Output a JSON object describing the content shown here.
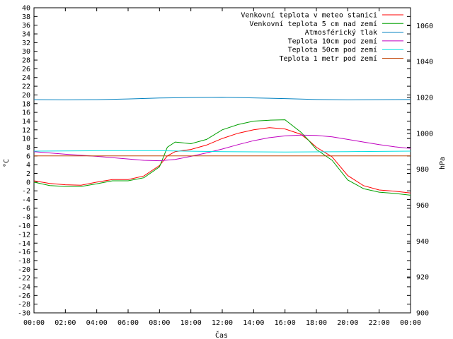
{
  "chart_data": {
    "type": "line",
    "title": "",
    "xlabel": "Čas",
    "ylabel_left": "°C",
    "ylabel_right": "hPa",
    "ylim_left": [
      -30,
      40
    ],
    "ylim_right": [
      900,
      1070
    ],
    "xlim_hours": [
      0,
      24
    ],
    "grid": false,
    "legend_position": "top-right",
    "left_ticks": [
      "40",
      "38",
      "36",
      "34",
      "32",
      "30",
      "28",
      "26",
      "24",
      "22",
      "20",
      "18",
      "16",
      "14",
      "12",
      "10",
      "8",
      "6",
      "4",
      "2",
      "0",
      "-2",
      "-4",
      "-6",
      "-8",
      "-10",
      "-12",
      "-14",
      "-16",
      "-18",
      "-20",
      "-22",
      "-24",
      "-26",
      "-28",
      "-30"
    ],
    "right_ticks": [
      "1060",
      "1040",
      "1020",
      "1000",
      "980",
      "960",
      "940",
      "920",
      "900"
    ],
    "x_ticks": [
      "00:00",
      "02:00",
      "04:00",
      "06:00",
      "08:00",
      "10:00",
      "12:00",
      "14:00",
      "16:00",
      "18:00",
      "20:00",
      "22:00",
      "00:00"
    ],
    "series": [
      {
        "name": "Venkovní teplota v meteo stanici",
        "color": "#ff0000",
        "axis": "left",
        "x": [
          "00:00",
          "01:00",
          "02:00",
          "03:00",
          "04:00",
          "05:00",
          "06:00",
          "07:00",
          "08:00",
          "08:30",
          "09:00",
          "10:00",
          "11:00",
          "12:00",
          "13:00",
          "14:00",
          "15:00",
          "16:00",
          "17:00",
          "17:30",
          "18:00",
          "19:00",
          "20:00",
          "21:00",
          "22:00",
          "23:00",
          "00:00"
        ],
        "y": [
          0.3,
          -0.3,
          -0.6,
          -0.7,
          0.0,
          0.6,
          0.6,
          1.4,
          3.8,
          6.0,
          7.0,
          7.5,
          8.5,
          10.0,
          11.2,
          12.0,
          12.5,
          12.2,
          11.0,
          9.6,
          8.0,
          5.8,
          1.5,
          -0.8,
          -1.8,
          -2.1,
          -2.5
        ]
      },
      {
        "name": "Venkovní teplota 5 cm nad zemí",
        "color": "#00a000",
        "axis": "left",
        "x": [
          "00:00",
          "01:00",
          "02:00",
          "03:00",
          "04:00",
          "05:00",
          "06:00",
          "07:00",
          "08:00",
          "08:30",
          "09:00",
          "10:00",
          "11:00",
          "12:00",
          "13:00",
          "14:00",
          "15:00",
          "16:00",
          "17:00",
          "17:30",
          "18:00",
          "19:00",
          "20:00",
          "21:00",
          "22:00",
          "23:00",
          "00:00"
        ],
        "y": [
          0.0,
          -0.8,
          -1.0,
          -1.0,
          -0.4,
          0.3,
          0.3,
          1.0,
          3.5,
          8.0,
          9.2,
          8.8,
          9.8,
          12.0,
          13.2,
          14.0,
          14.2,
          14.3,
          11.5,
          9.6,
          7.5,
          5.0,
          0.5,
          -1.5,
          -2.3,
          -2.6,
          -3.0
        ]
      },
      {
        "name": "Atmosférický tlak",
        "color": "#0080c0",
        "axis": "right",
        "x": [
          "00:00",
          "02:00",
          "04:00",
          "06:00",
          "08:00",
          "10:00",
          "12:00",
          "14:00",
          "16:00",
          "18:00",
          "20:00",
          "22:00",
          "00:00"
        ],
        "y": [
          1018.8,
          1018.7,
          1018.8,
          1019.2,
          1019.7,
          1020.0,
          1020.1,
          1019.8,
          1019.4,
          1018.9,
          1018.7,
          1018.8,
          1018.9
        ]
      },
      {
        "name": "Teplota 10cm pod zemí",
        "color": "#c000c0",
        "axis": "left",
        "x": [
          "00:00",
          "02:00",
          "04:00",
          "06:00",
          "07:00",
          "08:00",
          "09:00",
          "10:00",
          "11:00",
          "12:00",
          "13:00",
          "14:00",
          "15:00",
          "16:00",
          "17:00",
          "18:00",
          "19:00",
          "20:00",
          "21:00",
          "22:00",
          "23:00",
          "24:00"
        ],
        "y": [
          7.0,
          6.4,
          5.9,
          5.3,
          5.0,
          4.9,
          5.2,
          5.9,
          6.7,
          7.6,
          8.6,
          9.5,
          10.2,
          10.6,
          10.8,
          10.7,
          10.4,
          9.8,
          9.2,
          8.6,
          8.1,
          7.7
        ]
      },
      {
        "name": "Teplota 50cm pod zemí",
        "color": "#00e0e0",
        "axis": "left",
        "x": [
          "00:00",
          "04:00",
          "08:00",
          "12:00",
          "16:00",
          "20:00",
          "24:00"
        ],
        "y": [
          7.1,
          7.2,
          7.2,
          7.0,
          6.9,
          7.0,
          7.1
        ]
      },
      {
        "name": "Teplota 1 metr pod zemí",
        "color": "#c04000",
        "axis": "left",
        "x": [
          "00:00",
          "24:00"
        ],
        "y": [
          6.0,
          6.0
        ]
      }
    ]
  }
}
